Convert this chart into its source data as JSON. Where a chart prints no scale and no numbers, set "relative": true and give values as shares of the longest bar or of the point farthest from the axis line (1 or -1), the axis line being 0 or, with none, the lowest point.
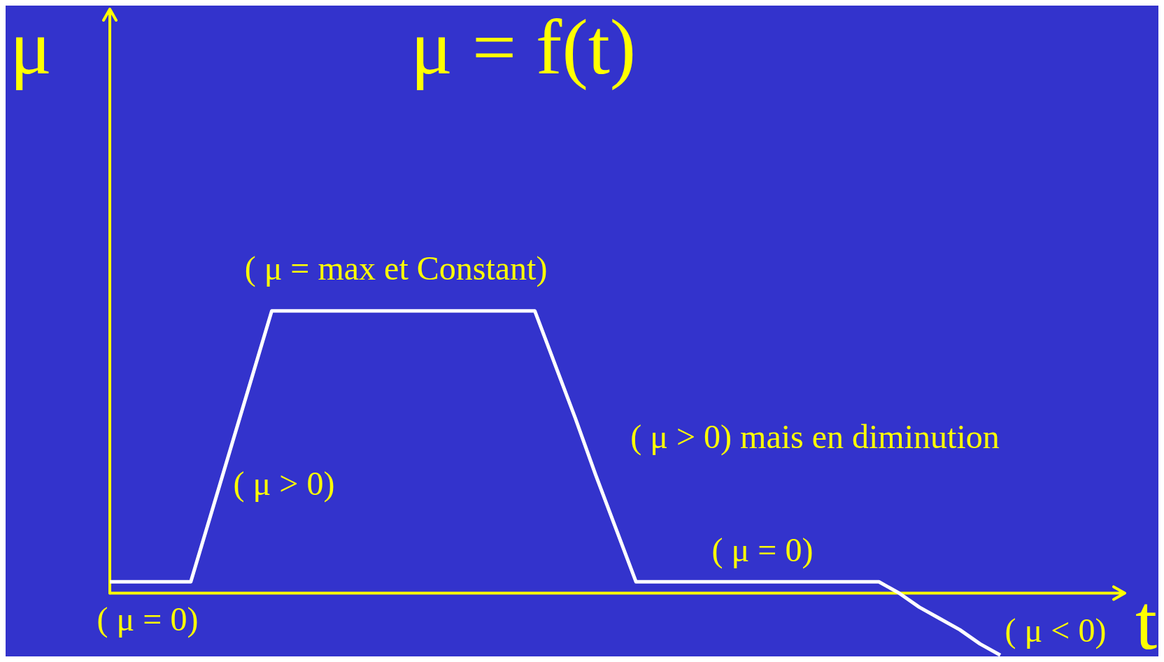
{
  "chart_data": {
    "type": "line",
    "title": "μ = f(t)",
    "xlabel": "t",
    "ylabel": "μ",
    "relative": true,
    "ref_lines": [
      {
        "axis": "y",
        "value": 0,
        "color": "#ffff00"
      }
    ],
    "categories": [
      null,
      null,
      null,
      null,
      null,
      null,
      null,
      null,
      null,
      null,
      null,
      null,
      null,
      null,
      null,
      null,
      null,
      null,
      null,
      null,
      null,
      null,
      null,
      null,
      null,
      null,
      null,
      null,
      null,
      null,
      null,
      null,
      null,
      null,
      null,
      null,
      null,
      null,
      null,
      null,
      null,
      null,
      null,
      null,
      null
    ],
    "series": [
      {
        "color": "#ffffff",
        "values": [
          0.04,
          0.04,
          0.04,
          0.04,
          0.04,
          0.28,
          0.52,
          0.76,
          1,
          1,
          1,
          1,
          1,
          1,
          1,
          1,
          1,
          1,
          1,
          1,
          1,
          1,
          0.81,
          0.62,
          0.42,
          0.23,
          0.04,
          0.04,
          0.04,
          0.04,
          0.04,
          0.04,
          0.04,
          0.04,
          0.04,
          0.04,
          0.04,
          0.04,
          0.04,
          0,
          -0.05,
          -0.09,
          -0.13,
          -0.18,
          -0.22
        ]
      }
    ],
    "annotations": [
      "( μ = max et Constant)",
      "( μ > 0)",
      "( μ > 0) mais en diminution",
      "( μ = 0)",
      "( μ = 0)",
      "( μ < 0)"
    ]
  }
}
